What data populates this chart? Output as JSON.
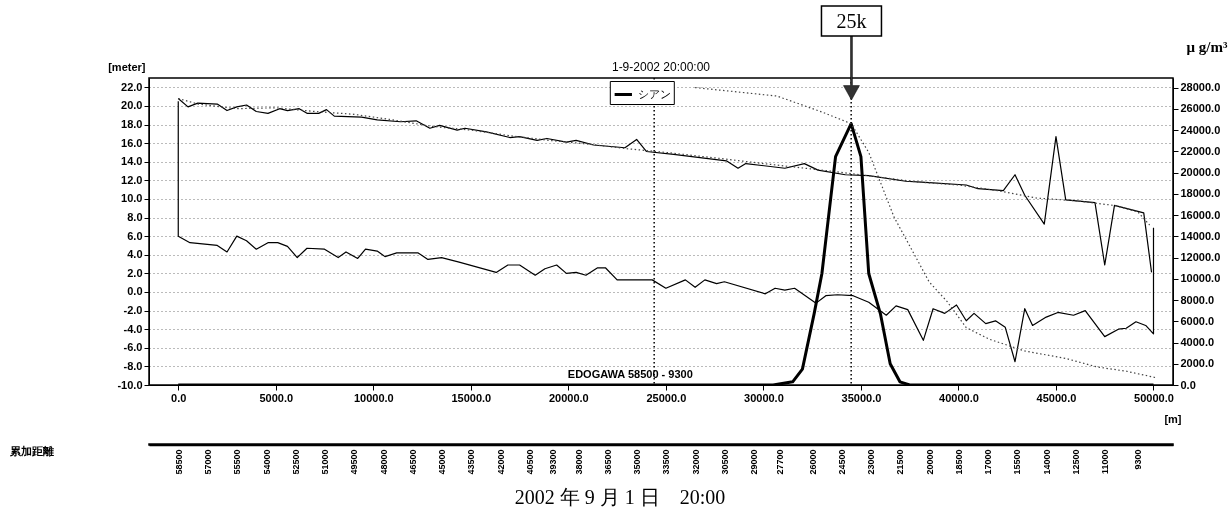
{
  "chart_data": {
    "type": "line",
    "title": "1-9-2002 20:00:00",
    "ylabel": "[meter]",
    "y2label": "μ g/m³",
    "xlabel": "[m]",
    "x2label": "累加距離",
    "xlim": [
      -1500,
      51000
    ],
    "ylim": [
      -10,
      23
    ],
    "y2lim": [
      0,
      28900
    ],
    "x2lim": [
      60000,
      7500
    ],
    "xticks": [
      {
        "value": 0,
        "label": "0.0"
      },
      {
        "value": 5000,
        "label": "5000.0"
      },
      {
        "value": 10000,
        "label": "10000.0"
      },
      {
        "value": 15000,
        "label": "15000.0"
      },
      {
        "value": 20000,
        "label": "20000.0"
      },
      {
        "value": 25000,
        "label": "25000.0"
      },
      {
        "value": 30000,
        "label": "30000.0"
      },
      {
        "value": 35000,
        "label": "35000.0"
      },
      {
        "value": 40000,
        "label": "40000.0"
      },
      {
        "value": 45000,
        "label": "45000.0"
      },
      {
        "value": 50000,
        "label": "50000.0"
      }
    ],
    "yticks": [
      {
        "value": 22,
        "label": "22.0"
      },
      {
        "value": 20,
        "label": "20.0"
      },
      {
        "value": 18,
        "label": "18.0"
      },
      {
        "value": 16,
        "label": "16.0"
      },
      {
        "value": 14,
        "label": "14.0"
      },
      {
        "value": 12,
        "label": "12.0"
      },
      {
        "value": 10,
        "label": "10.0"
      },
      {
        "value": 8,
        "label": "8.0"
      },
      {
        "value": 6,
        "label": "6.0"
      },
      {
        "value": 4,
        "label": "4.0"
      },
      {
        "value": 2,
        "label": "2.0"
      },
      {
        "value": 0,
        "label": "0.0"
      },
      {
        "value": -2,
        "label": "-2.0"
      },
      {
        "value": -4,
        "label": "-4.0"
      },
      {
        "value": -6,
        "label": "-6.0"
      },
      {
        "value": -8,
        "label": "-8.0"
      },
      {
        "value": -10,
        "label": "-10.0"
      }
    ],
    "y2ticks": [
      {
        "value": 28000,
        "label": "28000.0"
      },
      {
        "value": 26000,
        "label": "26000.0"
      },
      {
        "value": 24000,
        "label": "24000.0"
      },
      {
        "value": 22000,
        "label": "22000.0"
      },
      {
        "value": 20000,
        "label": "20000.0"
      },
      {
        "value": 18000,
        "label": "18000.0"
      },
      {
        "value": 16000,
        "label": "16000.0"
      },
      {
        "value": 14000,
        "label": "14000.0"
      },
      {
        "value": 12000,
        "label": "12000.0"
      },
      {
        "value": 10000,
        "label": "10000.0"
      },
      {
        "value": 8000,
        "label": "8000.0"
      },
      {
        "value": 6000,
        "label": "6000.0"
      },
      {
        "value": 4000,
        "label": "4000.0"
      },
      {
        "value": 2000,
        "label": "2000.0"
      },
      {
        "value": 0,
        "label": "0.0"
      }
    ],
    "x2ticks": [
      58500,
      57000,
      55500,
      54000,
      52500,
      51000,
      49500,
      48000,
      46500,
      45000,
      43500,
      42000,
      40500,
      39300,
      38000,
      36500,
      35000,
      33500,
      32000,
      30500,
      29000,
      27700,
      26000,
      24500,
      23000,
      21500,
      20000,
      18500,
      17000,
      15500,
      14000,
      12500,
      11000,
      9300
    ],
    "grid": "y",
    "legend": "top",
    "series": [
      {
        "color": "#000000",
        "line_style": "solid",
        "x": [
          0,
          500,
          1000,
          2000,
          2500,
          3000,
          3500,
          4000,
          4600,
          5200,
          5600,
          6200,
          6600,
          7200,
          7600,
          8000,
          9400,
          10200,
          11400,
          12200,
          12900,
          13400,
          14300,
          14700,
          15800,
          17000,
          17500,
          18400,
          18900,
          19900,
          20400,
          21300,
          22900,
          23500,
          24000,
          25400,
          28100,
          28700,
          29100,
          31100,
          32100,
          32800,
          34200,
          35400,
          37300,
          38100,
          40400,
          41000,
          42300,
          42900,
          43400,
          44400,
          45000,
          45500,
          47000,
          47500,
          48000,
          49500,
          49900
        ],
        "values": [
          20.8,
          19.9,
          20.3,
          20.2,
          19.5,
          19.9,
          20.1,
          19.4,
          19.2,
          19.7,
          19.5,
          19.7,
          19.2,
          19.2,
          19.6,
          18.9,
          18.8,
          18.5,
          18.3,
          18.4,
          17.6,
          17.9,
          17.4,
          17.6,
          17.2,
          16.6,
          16.7,
          16.3,
          16.5,
          16.1,
          16.3,
          15.8,
          15.5,
          16.4,
          15.1,
          14.8,
          14.1,
          13.3,
          13.8,
          13.3,
          13.8,
          13.1,
          12.6,
          12.5,
          11.9,
          11.8,
          11.5,
          11.1,
          10.9,
          12.6,
          10.4,
          7.3,
          16.7,
          9.9,
          9.6,
          2.9,
          9.3,
          8.5,
          2.1
        ]
      },
      {
        "color": "#444444",
        "line_style": "dotted",
        "x": [
          0,
          1000,
          3000,
          5000,
          7000,
          9000,
          11000,
          13000,
          15000,
          17000,
          19000,
          21000,
          23000,
          25000,
          28000,
          30000,
          33000,
          35000,
          38000,
          40000,
          42000,
          44000,
          46000,
          48000,
          49200,
          49800
        ],
        "values": [
          20.8,
          20.2,
          19.7,
          19.8,
          19.4,
          19.1,
          18.5,
          17.8,
          17.4,
          16.8,
          16.3,
          15.9,
          15.4,
          15.0,
          14.3,
          13.8,
          13.1,
          12.6,
          11.8,
          11.5,
          10.9,
          10.1,
          9.8,
          9.3,
          8.6,
          7.2
        ]
      },
      {
        "color": "#000000",
        "line_style": "solid",
        "x": [
          0,
          0,
          600,
          2000,
          2500,
          3000,
          3500,
          4000,
          4600,
          5100,
          5600,
          6100,
          6600,
          7500,
          8200,
          8600,
          9200,
          9600,
          10200,
          10600,
          11200,
          12300,
          12800,
          13500,
          14400,
          16300,
          16900,
          17500,
          18300,
          18800,
          19400,
          19900,
          20400,
          20900,
          21500,
          21900,
          22500,
          24300,
          25000,
          26000,
          26500,
          27000,
          27600,
          28000,
          30100,
          30600,
          31100,
          31600,
          32700,
          33200,
          33800,
          34600,
          35400,
          36300,
          36800,
          37400,
          38200,
          38700,
          39300,
          39900,
          40400,
          40800,
          41400,
          41900,
          42400,
          42900,
          43400,
          43800,
          44500,
          45100,
          45900,
          46500,
          47500,
          48200,
          48600,
          49100,
          49600,
          50000,
          50000
        ],
        "values": [
          20.5,
          6.0,
          5.3,
          5.0,
          4.3,
          6.0,
          5.5,
          4.6,
          5.3,
          5.3,
          4.9,
          3.7,
          4.7,
          4.6,
          3.7,
          4.3,
          3.6,
          4.6,
          4.4,
          3.8,
          4.2,
          4.2,
          3.5,
          3.7,
          3.2,
          2.1,
          2.9,
          2.9,
          1.8,
          2.5,
          2.9,
          2.0,
          2.1,
          1.8,
          2.6,
          2.6,
          1.3,
          1.3,
          0.4,
          1.3,
          0.5,
          1.3,
          0.9,
          1.1,
          -0.2,
          0.4,
          0.2,
          0.4,
          -1.2,
          -0.4,
          -0.3,
          -0.4,
          -1.1,
          -2.5,
          -1.5,
          -1.9,
          -5.2,
          -1.8,
          -2.3,
          -1.4,
          -3.1,
          -2.3,
          -3.4,
          -3.1,
          -3.8,
          -7.5,
          -1.8,
          -3.6,
          -2.7,
          -2.2,
          -2.5,
          -2.0,
          -4.8,
          -4.0,
          -3.9,
          -3.2,
          -3.6,
          -4.5,
          6.9
        ]
      },
      {
        "name": "シアン",
        "axis": "y2",
        "color": "#000000",
        "line_style": "solid",
        "x": [
          0,
          30500,
          31500,
          32000,
          32600,
          33000,
          33700,
          34500,
          35000,
          35400,
          36000,
          36500,
          37000,
          37500,
          50000
        ],
        "values": [
          0,
          0,
          300,
          1500,
          6700,
          10500,
          21500,
          24600,
          21500,
          10500,
          6700,
          2000,
          300,
          0,
          0
        ]
      },
      {
        "axis": "y2",
        "color": "#444444",
        "line_style": "dotted",
        "x": [
          26500,
          30700,
          33000,
          34500,
          35400,
          36700,
          37500,
          38500,
          39400,
          40400,
          41600,
          43400,
          45500,
          47100,
          48600,
          50100
        ],
        "values": [
          28000,
          27200,
          25700,
          24600,
          21900,
          15800,
          13100,
          9700,
          7900,
          5400,
          4300,
          3200,
          2500,
          1700,
          1300,
          700
        ]
      }
    ],
    "ref_lines": [
      {
        "axis": "x",
        "value": 24400,
        "line_style": "dotted"
      },
      {
        "axis": "x",
        "value": 34500,
        "line_style": "dotted"
      }
    ],
    "annotations": [
      "EDOGAWA  58500 - 9300",
      "25k",
      "2002 年 9 月 1 日　20:00"
    ]
  }
}
